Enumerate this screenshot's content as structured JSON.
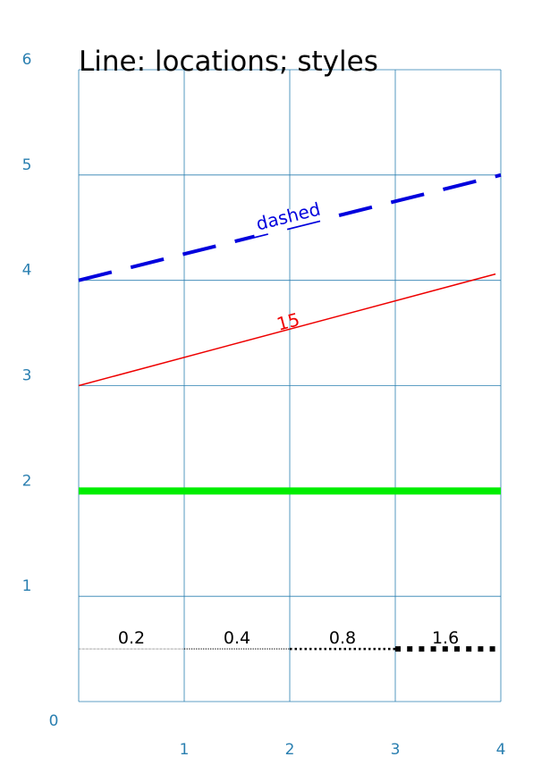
{
  "chart_data": {
    "type": "line",
    "title": "Line: locations; styles",
    "xlabel": "",
    "ylabel": "",
    "xlim": [
      0,
      4
    ],
    "ylim": [
      0,
      6
    ],
    "x_ticks": [
      "0",
      "1",
      "2",
      "3",
      "4"
    ],
    "y_ticks": [
      "0",
      "1",
      "2",
      "3",
      "4",
      "5",
      "6"
    ],
    "grid": true,
    "grid_color": "#2a7fb0",
    "series": [
      {
        "style": "solid",
        "color": "#00ee00",
        "width": 8,
        "points": [
          [
            0,
            2
          ],
          [
            4,
            2
          ]
        ]
      },
      {
        "style": "solid",
        "color": "#ee0000",
        "width": 1.5,
        "label": "15",
        "label_at": [
          2.0,
          3.55
        ],
        "label_angle_deg": 15,
        "points": [
          [
            0,
            3
          ],
          [
            3.95,
            4.06
          ]
        ]
      },
      {
        "style": "dashed",
        "color": "#0000dd",
        "width": 4,
        "label": "dashed",
        "label_at": [
          2.0,
          4.55
        ],
        "points": [
          [
            0,
            4
          ],
          [
            4,
            5
          ]
        ]
      }
    ],
    "dotted_segments": [
      {
        "label": "0.2",
        "x": [
          0,
          1
        ],
        "y": 0.5,
        "width": 0.6
      },
      {
        "label": "0.4",
        "x": [
          1,
          2
        ],
        "y": 0.5,
        "width": 1.2
      },
      {
        "label": "0.8",
        "x": [
          2,
          3
        ],
        "y": 0.5,
        "width": 2.5
      },
      {
        "label": "1.6",
        "x": [
          3,
          3.95
        ],
        "y": 0.5,
        "width": 6
      }
    ]
  }
}
